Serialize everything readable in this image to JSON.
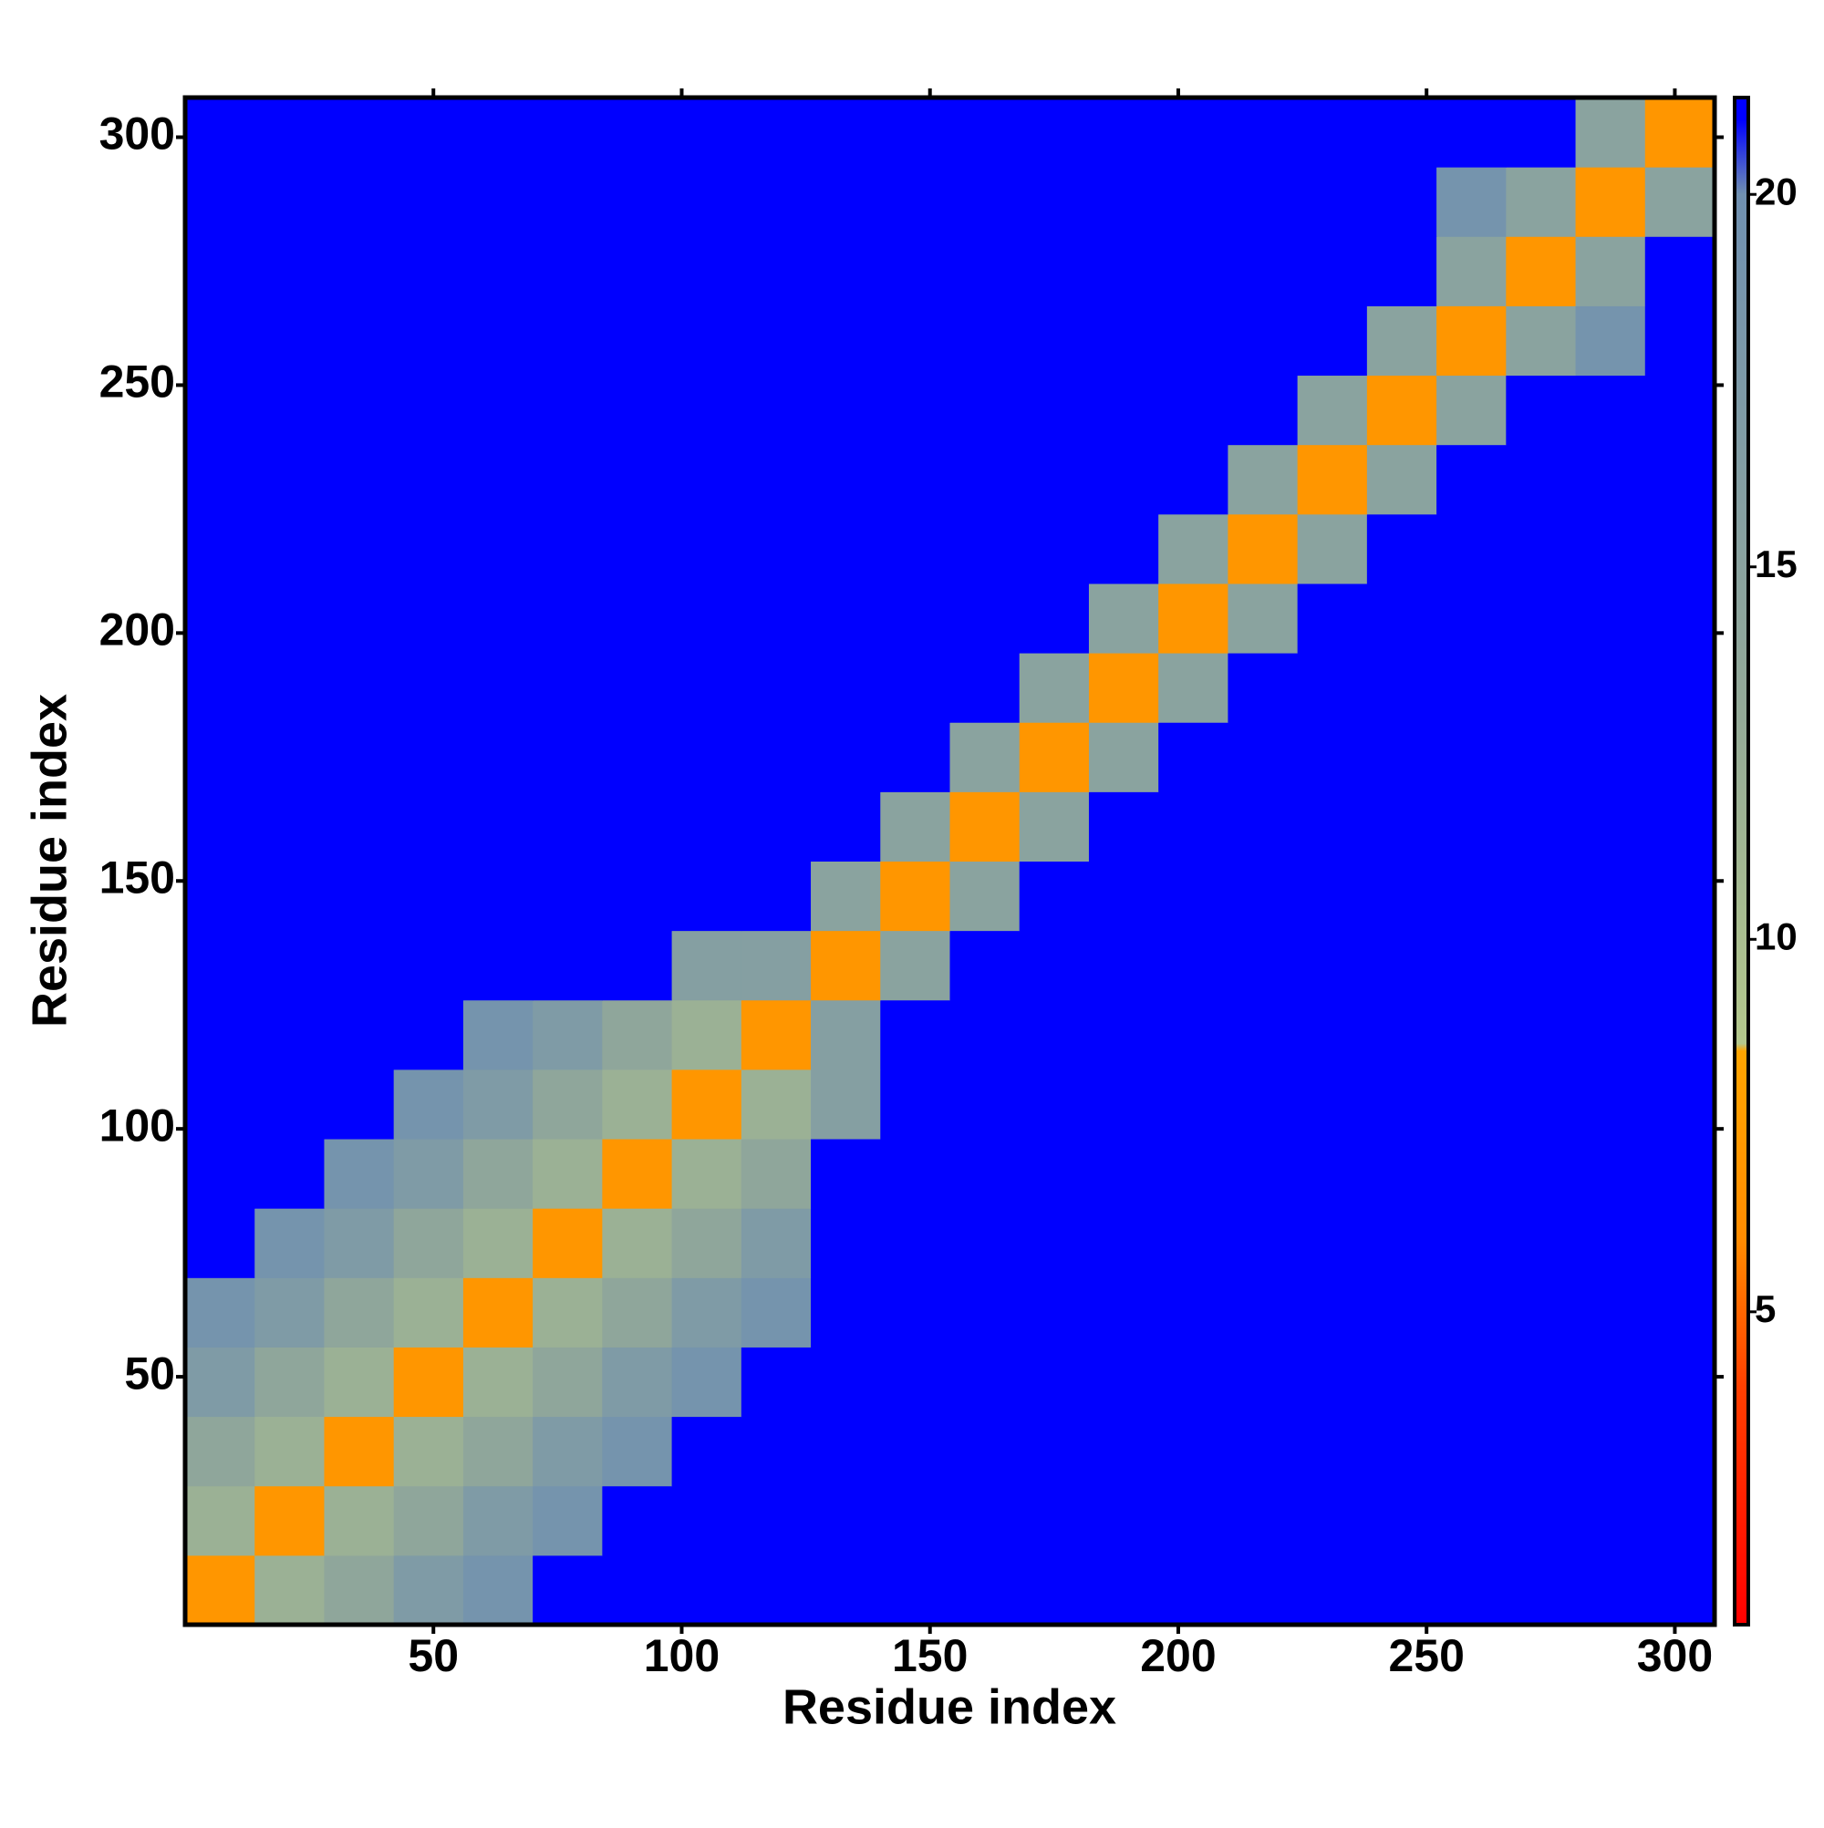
{
  "chart_data": {
    "type": "heatmap",
    "x_label": "Residue index",
    "y_label": "Residue index",
    "xlim": [
      0,
      308
    ],
    "ylim": [
      0,
      308
    ],
    "xticks": [
      50,
      100,
      150,
      200,
      250,
      300
    ],
    "yticks": [
      50,
      100,
      150,
      200,
      250,
      300
    ],
    "x_bins": [
      0,
      14,
      28,
      42,
      56,
      70,
      84,
      98,
      112,
      126,
      140,
      154,
      168,
      182,
      196,
      210,
      224,
      238,
      252,
      266,
      280,
      294,
      308
    ],
    "y_bins": [
      0,
      14,
      28,
      42,
      56,
      70,
      84,
      98,
      112,
      126,
      140,
      154,
      168,
      182,
      196,
      210,
      224,
      238,
      252,
      266,
      280,
      294,
      308
    ],
    "zlim": [
      0.8,
      21.3
    ],
    "zticks": [
      5,
      10,
      15,
      20
    ],
    "colorscale": [
      [
        0.8,
        "#ff0000"
      ],
      [
        4,
        "#ff4000"
      ],
      [
        6,
        "#ff8c00"
      ],
      [
        8.5,
        "#ffa500"
      ],
      [
        8.6,
        "#b4c88c"
      ],
      [
        13,
        "#94aa98"
      ],
      [
        20,
        "#7090b0"
      ],
      [
        21,
        "#0000ff"
      ]
    ],
    "z": [
      [
        7,
        12,
        14,
        17,
        19,
        21,
        21,
        21,
        21,
        21,
        21,
        21,
        21,
        21,
        21,
        21,
        21,
        21,
        21,
        21,
        21,
        21
      ],
      [
        12,
        7,
        12,
        14,
        17,
        19,
        21,
        21,
        21,
        21,
        21,
        21,
        21,
        21,
        21,
        21,
        21,
        21,
        21,
        21,
        21,
        21
      ],
      [
        14,
        12,
        7,
        12,
        14,
        17,
        19,
        21,
        21,
        21,
        21,
        21,
        21,
        21,
        21,
        21,
        21,
        21,
        21,
        21,
        21,
        21
      ],
      [
        17,
        14,
        12,
        7,
        12,
        14,
        17,
        19,
        21,
        21,
        21,
        21,
        21,
        21,
        21,
        21,
        21,
        21,
        21,
        21,
        21,
        21
      ],
      [
        19,
        17,
        14,
        12,
        7,
        12,
        14,
        17,
        19,
        21,
        21,
        21,
        21,
        21,
        21,
        21,
        21,
        21,
        21,
        21,
        21,
        21
      ],
      [
        21,
        19,
        17,
        14,
        12,
        7,
        12,
        14,
        17,
        21,
        21,
        21,
        21,
        21,
        21,
        21,
        21,
        21,
        21,
        21,
        21,
        21
      ],
      [
        21,
        21,
        19,
        17,
        14,
        12,
        7,
        12,
        14,
        21,
        21,
        21,
        21,
        21,
        21,
        21,
        21,
        21,
        21,
        21,
        21,
        21
      ],
      [
        21,
        21,
        21,
        19,
        17,
        14,
        12,
        7,
        12,
        16,
        21,
        21,
        21,
        21,
        21,
        21,
        21,
        21,
        21,
        21,
        21,
        21
      ],
      [
        21,
        21,
        21,
        21,
        19,
        17,
        14,
        12,
        7,
        16,
        21,
        21,
        21,
        21,
        21,
        21,
        21,
        21,
        21,
        21,
        21,
        21
      ],
      [
        21,
        21,
        21,
        21,
        21,
        21,
        21,
        16,
        16,
        7,
        15,
        21,
        21,
        21,
        21,
        21,
        21,
        21,
        21,
        21,
        21,
        21
      ],
      [
        21,
        21,
        21,
        21,
        21,
        21,
        21,
        21,
        21,
        15,
        7,
        15,
        21,
        21,
        21,
        21,
        21,
        21,
        21,
        21,
        21,
        21
      ],
      [
        21,
        21,
        21,
        21,
        21,
        21,
        21,
        21,
        21,
        21,
        15,
        7,
        15,
        21,
        21,
        21,
        21,
        21,
        21,
        21,
        21,
        21
      ],
      [
        21,
        21,
        21,
        21,
        21,
        21,
        21,
        21,
        21,
        21,
        21,
        15,
        7,
        15,
        21,
        21,
        21,
        21,
        21,
        21,
        21,
        21
      ],
      [
        21,
        21,
        21,
        21,
        21,
        21,
        21,
        21,
        21,
        21,
        21,
        21,
        15,
        7,
        15,
        21,
        21,
        21,
        21,
        21,
        21,
        21
      ],
      [
        21,
        21,
        21,
        21,
        21,
        21,
        21,
        21,
        21,
        21,
        21,
        21,
        21,
        15,
        7,
        15,
        21,
        21,
        21,
        21,
        21,
        21
      ],
      [
        21,
        21,
        21,
        21,
        21,
        21,
        21,
        21,
        21,
        21,
        21,
        21,
        21,
        21,
        15,
        7,
        15,
        21,
        21,
        21,
        21,
        21
      ],
      [
        21,
        21,
        21,
        21,
        21,
        21,
        21,
        21,
        21,
        21,
        21,
        21,
        21,
        21,
        21,
        15,
        7,
        15,
        21,
        21,
        21,
        21
      ],
      [
        21,
        21,
        21,
        21,
        21,
        21,
        21,
        21,
        21,
        21,
        21,
        21,
        21,
        21,
        21,
        21,
        15,
        7,
        15,
        21,
        21,
        21
      ],
      [
        21,
        21,
        21,
        21,
        21,
        21,
        21,
        21,
        21,
        21,
        21,
        21,
        21,
        21,
        21,
        21,
        21,
        15,
        7,
        15,
        19,
        21
      ],
      [
        21,
        21,
        21,
        21,
        21,
        21,
        21,
        21,
        21,
        21,
        21,
        21,
        21,
        21,
        21,
        21,
        21,
        21,
        15,
        7,
        15,
        21
      ],
      [
        21,
        21,
        21,
        21,
        21,
        21,
        21,
        21,
        21,
        21,
        21,
        21,
        21,
        21,
        21,
        21,
        21,
        21,
        19,
        15,
        7,
        15
      ],
      [
        21,
        21,
        21,
        21,
        21,
        21,
        21,
        21,
        21,
        21,
        21,
        21,
        21,
        21,
        21,
        21,
        21,
        21,
        21,
        21,
        15,
        7
      ]
    ]
  }
}
